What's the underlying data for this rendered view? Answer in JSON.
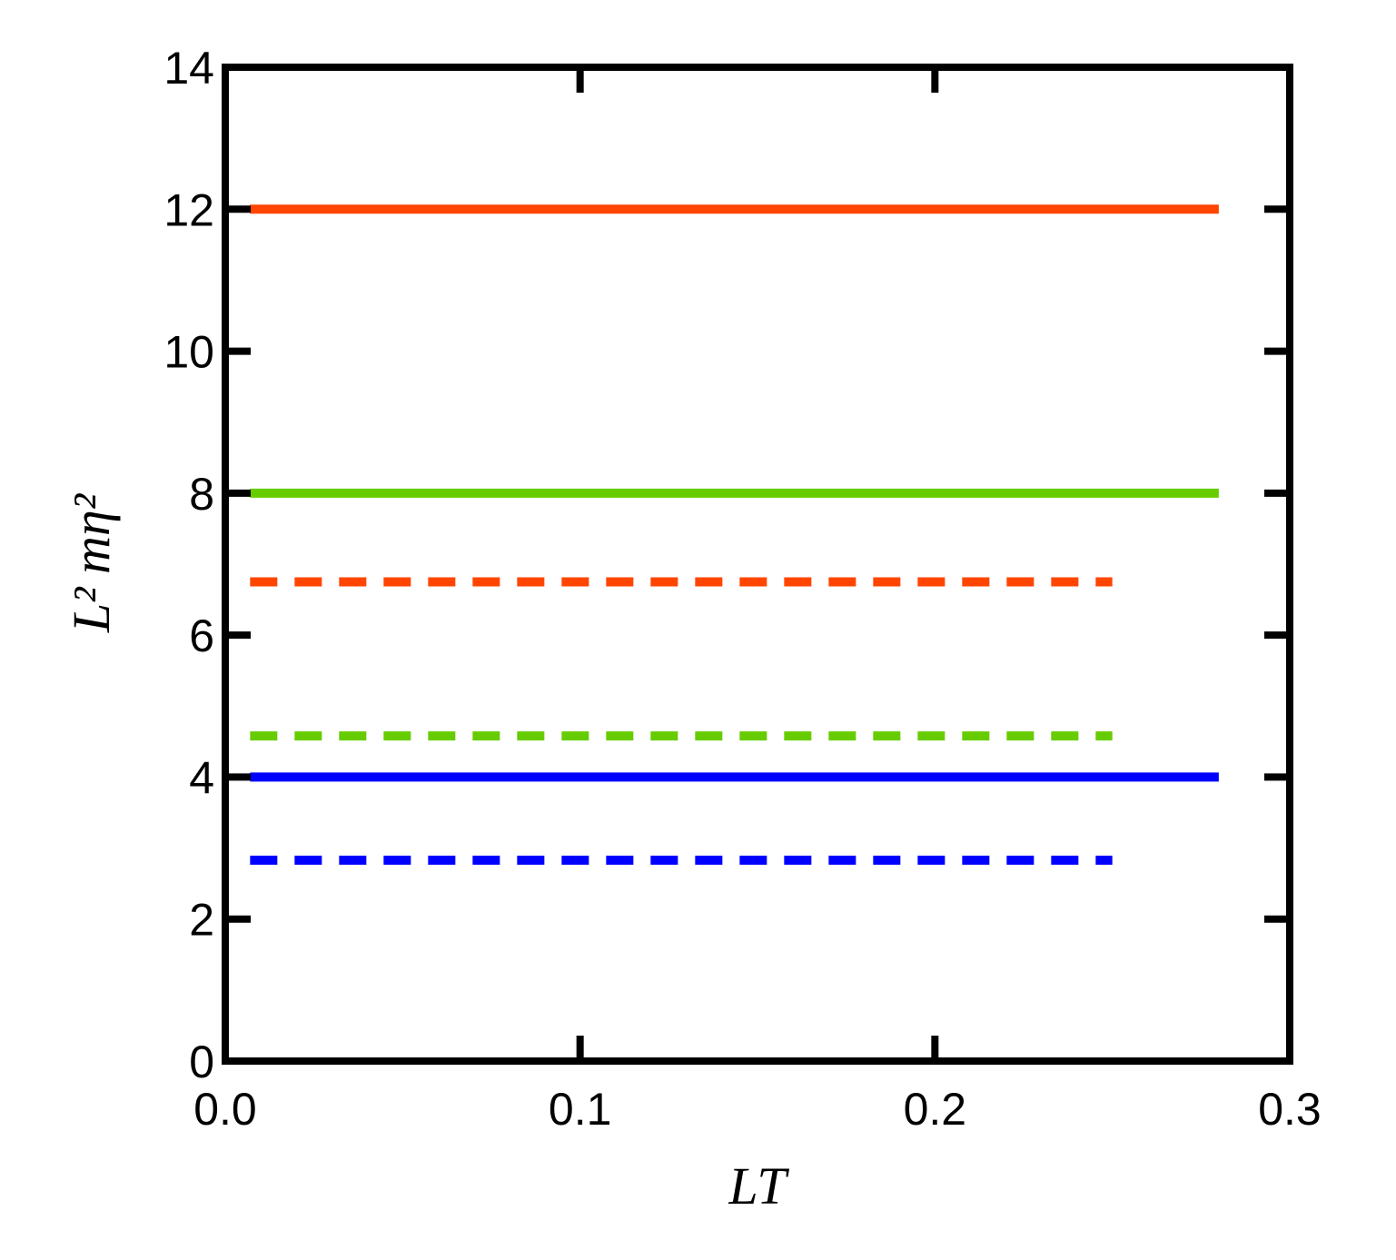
{
  "chart_data": {
    "type": "line",
    "xlabel": "LT",
    "ylabel": "L² mη²",
    "xlim": [
      0,
      0.3
    ],
    "ylim": [
      0,
      14
    ],
    "xticks": [
      {
        "value": 0,
        "label": "0.0"
      },
      0.1,
      0.2,
      0.3
    ],
    "yticks": [
      0,
      2,
      4,
      6,
      8,
      10,
      12,
      14
    ],
    "series": [
      {
        "color": "#ff4500",
        "dash": false,
        "x": [
          0.007,
          0.28
        ],
        "values": [
          12,
          12
        ]
      },
      {
        "color": "#66cc00",
        "dash": false,
        "x": [
          0.007,
          0.28
        ],
        "values": [
          8,
          8
        ]
      },
      {
        "color": "#0000ff",
        "dash": false,
        "x": [
          0.007,
          0.28
        ],
        "values": [
          4,
          4
        ]
      },
      {
        "color": "#ff4500",
        "dash": true,
        "x": [
          0.007,
          0.25
        ],
        "values": [
          6.75,
          6.75
        ]
      },
      {
        "color": "#66cc00",
        "dash": true,
        "x": [
          0.007,
          0.25
        ],
        "values": [
          4.58,
          4.58
        ]
      },
      {
        "color": "#0000ff",
        "dash": true,
        "x": [
          0.007,
          0.25
        ],
        "values": [
          2.83,
          2.83
        ]
      }
    ]
  }
}
